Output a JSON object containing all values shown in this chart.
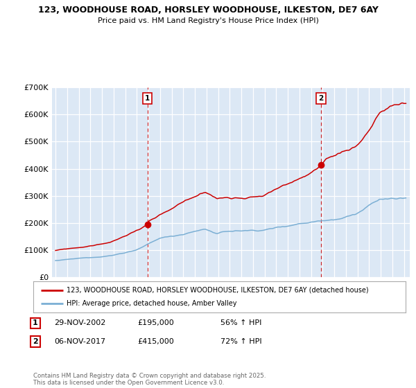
{
  "title_line1": "123, WOODHOUSE ROAD, HORSLEY WOODHOUSE, ILKESTON, DE7 6AY",
  "title_line2": "Price paid vs. HM Land Registry's House Price Index (HPI)",
  "xlim": [
    1994.7,
    2025.5
  ],
  "ylim": [
    0,
    700000
  ],
  "yticks": [
    0,
    100000,
    200000,
    300000,
    400000,
    500000,
    600000,
    700000
  ],
  "ytick_labels": [
    "£0",
    "£100K",
    "£200K",
    "£300K",
    "£400K",
    "£500K",
    "£600K",
    "£700K"
  ],
  "marker1_x": 2002.92,
  "marker1_price": 195000,
  "marker2_x": 2017.85,
  "marker2_price": 415000,
  "legend_line1": "123, WOODHOUSE ROAD, HORSLEY WOODHOUSE, ILKESTON, DE7 6AY (detached house)",
  "legend_line2": "HPI: Average price, detached house, Amber Valley",
  "red_color": "#cc0000",
  "blue_color": "#7bafd4",
  "bg_color": "#dce8f5",
  "note1_date": "29-NOV-2002",
  "note1_price": "£195,000",
  "note1_hpi": "56% ↑ HPI",
  "note2_date": "06-NOV-2017",
  "note2_price": "£415,000",
  "note2_hpi": "72% ↑ HPI",
  "footer": "Contains HM Land Registry data © Crown copyright and database right 2025.\nThis data is licensed under the Open Government Licence v3.0."
}
